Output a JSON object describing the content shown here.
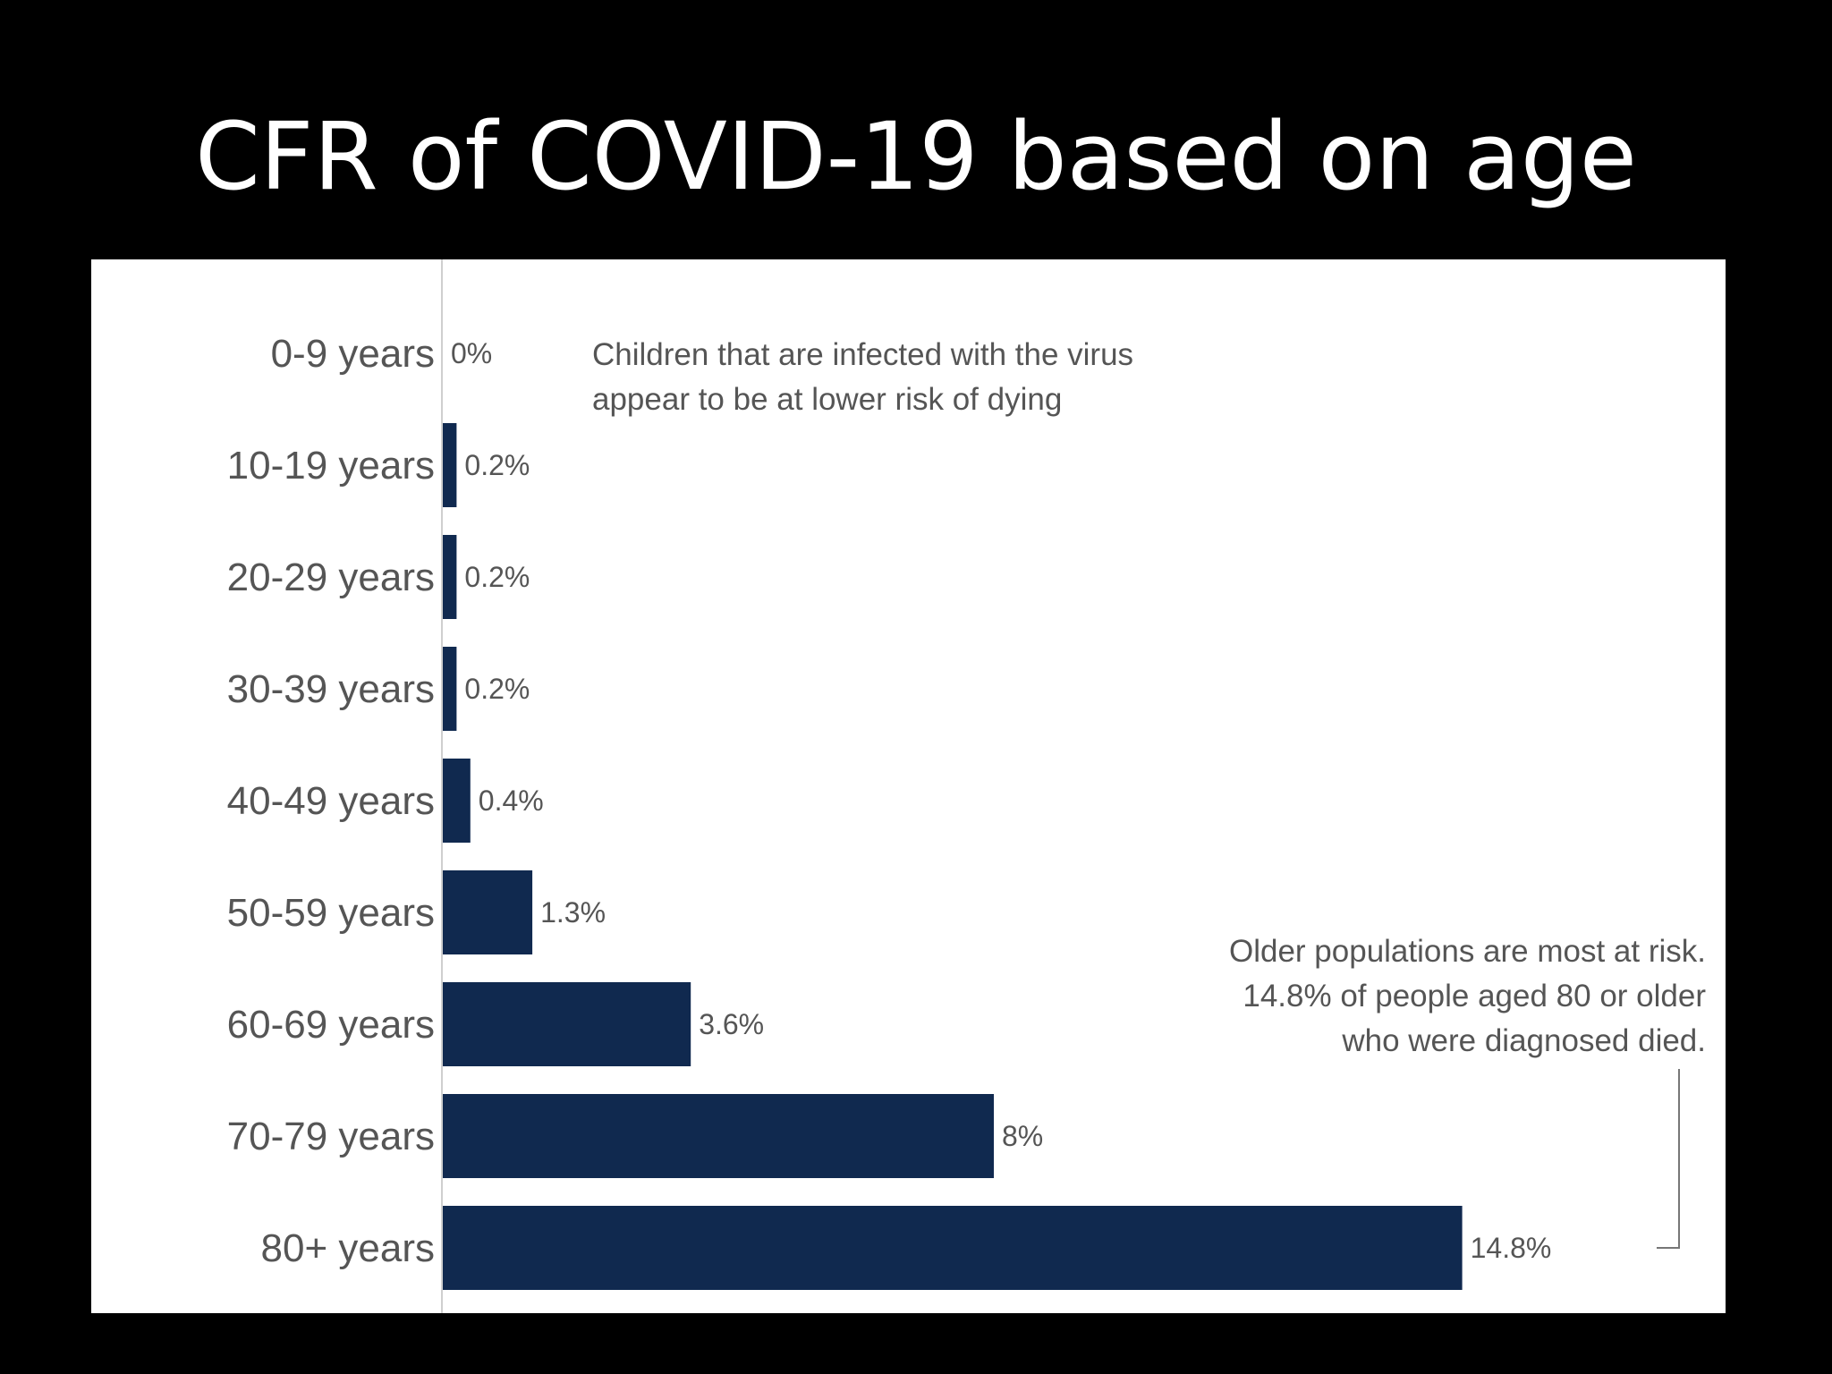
{
  "slide": {
    "title": "CFR of COVID-19 based on age"
  },
  "chart_data": {
    "type": "bar",
    "orientation": "horizontal",
    "title": "",
    "xlabel": "",
    "ylabel": "",
    "categories": [
      "0-9 years",
      "10-19 years",
      "20-29 years",
      "30-39 years",
      "40-49 years",
      "50-59 years",
      "60-69 years",
      "70-79 years",
      "80+ years"
    ],
    "values": [
      0,
      0.2,
      0.2,
      0.2,
      0.4,
      1.3,
      3.6,
      8,
      14.8
    ],
    "value_labels": [
      "0%",
      "0.2%",
      "0.2%",
      "0.2%",
      "0.4%",
      "1.3%",
      "3.6%",
      "8%",
      "14.8%"
    ],
    "xlim": [
      0,
      16
    ],
    "grid": false,
    "legend": "none",
    "bar_color": "#10294f",
    "annotations": [
      {
        "id": "children",
        "lines": [
          "Children that are infected with the virus",
          "appear to be at lower risk of dying"
        ],
        "category": "0-9 years"
      },
      {
        "id": "older",
        "lines": [
          "Older populations are most at risk.",
          "14.8% of people aged 80 or older",
          "who were diagnosed died."
        ],
        "category": "80+ years"
      }
    ]
  }
}
